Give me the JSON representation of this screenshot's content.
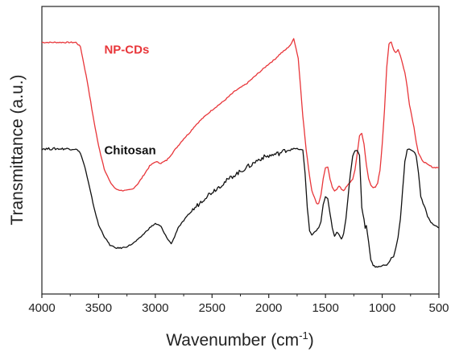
{
  "chart_data": {
    "type": "line",
    "title": "",
    "xlabel": "Wavenumber (cm",
    "xlabel_superscript": "-1",
    "xlabel_suffix": ")",
    "ylabel": "Transmittance (a.u.)",
    "xlim": [
      4000,
      500
    ],
    "x_reversed": true,
    "y_ticks_shown": false,
    "x_ticks": [
      "4000",
      "3500",
      "3000",
      "2500",
      "2000",
      "1500",
      "1000",
      "500"
    ],
    "series": [
      {
        "name": "NP-CDs",
        "color": "#e8363a",
        "x": [
          4000,
          3700,
          3660,
          3600,
          3550,
          3500,
          3450,
          3400,
          3350,
          3300,
          3250,
          3200,
          3150,
          3100,
          3050,
          3000,
          2950,
          2900,
          2850,
          2800,
          2750,
          2700,
          2650,
          2600,
          2500,
          2400,
          2300,
          2200,
          2100,
          2000,
          1950,
          1900,
          1850,
          1800,
          1780,
          1740,
          1700,
          1670,
          1640,
          1620,
          1600,
          1580,
          1560,
          1540,
          1520,
          1500,
          1480,
          1460,
          1440,
          1420,
          1400,
          1380,
          1360,
          1340,
          1320,
          1300,
          1280,
          1260,
          1240,
          1220,
          1200,
          1180,
          1160,
          1140,
          1120,
          1100,
          1080,
          1060,
          1040,
          1020,
          1000,
          980,
          960,
          940,
          920,
          900,
          880,
          860,
          840,
          820,
          800,
          780,
          760,
          740,
          720,
          700,
          680,
          650,
          600,
          550,
          500
        ],
        "y": [
          0.875,
          0.875,
          0.86,
          0.74,
          0.62,
          0.515,
          0.435,
          0.39,
          0.365,
          0.36,
          0.36,
          0.365,
          0.385,
          0.415,
          0.445,
          0.46,
          0.455,
          0.465,
          0.49,
          0.515,
          0.54,
          0.56,
          0.585,
          0.605,
          0.64,
          0.67,
          0.705,
          0.73,
          0.765,
          0.8,
          0.815,
          0.835,
          0.85,
          0.87,
          0.89,
          0.82,
          0.62,
          0.5,
          0.41,
          0.36,
          0.34,
          0.315,
          0.315,
          0.345,
          0.4,
          0.44,
          0.44,
          0.4,
          0.37,
          0.36,
          0.365,
          0.375,
          0.365,
          0.36,
          0.37,
          0.38,
          0.39,
          0.4,
          0.43,
          0.49,
          0.55,
          0.56,
          0.52,
          0.45,
          0.4,
          0.38,
          0.37,
          0.37,
          0.385,
          0.43,
          0.52,
          0.64,
          0.79,
          0.87,
          0.875,
          0.85,
          0.84,
          0.85,
          0.83,
          0.8,
          0.77,
          0.72,
          0.66,
          0.62,
          0.58,
          0.53,
          0.49,
          0.465,
          0.45,
          0.44,
          0.44
        ]
      },
      {
        "name": "Chitosan",
        "color": "#111111",
        "x": [
          4000,
          3900,
          3800,
          3700,
          3660,
          3620,
          3580,
          3540,
          3500,
          3450,
          3400,
          3350,
          3300,
          3250,
          3200,
          3150,
          3100,
          3050,
          3000,
          2950,
          2920,
          2880,
          2860,
          2840,
          2800,
          2750,
          2700,
          2650,
          2600,
          2550,
          2500,
          2450,
          2400,
          2350,
          2300,
          2250,
          2200,
          2150,
          2100,
          2050,
          2000,
          1950,
          1900,
          1850,
          1800,
          1750,
          1700,
          1680,
          1660,
          1640,
          1620,
          1600,
          1580,
          1560,
          1540,
          1520,
          1500,
          1480,
          1460,
          1440,
          1420,
          1400,
          1380,
          1360,
          1340,
          1320,
          1300,
          1280,
          1260,
          1240,
          1220,
          1200,
          1180,
          1160,
          1150,
          1140,
          1120,
          1100,
          1080,
          1060,
          1040,
          1020,
          1000,
          980,
          960,
          940,
          920,
          900,
          880,
          860,
          840,
          820,
          800,
          780,
          760,
          740,
          720,
          700,
          680,
          660,
          640,
          620,
          600,
          580,
          560,
          540,
          520,
          500
        ],
        "y": [
          0.505,
          0.505,
          0.505,
          0.505,
          0.49,
          0.44,
          0.37,
          0.3,
          0.24,
          0.2,
          0.17,
          0.16,
          0.16,
          0.165,
          0.175,
          0.19,
          0.21,
          0.23,
          0.245,
          0.235,
          0.21,
          0.185,
          0.175,
          0.19,
          0.23,
          0.255,
          0.28,
          0.3,
          0.32,
          0.34,
          0.355,
          0.37,
          0.385,
          0.4,
          0.415,
          0.425,
          0.44,
          0.45,
          0.465,
          0.475,
          0.48,
          0.485,
          0.49,
          0.5,
          0.505,
          0.505,
          0.5,
          0.42,
          0.3,
          0.22,
          0.205,
          0.215,
          0.22,
          0.23,
          0.25,
          0.31,
          0.34,
          0.33,
          0.28,
          0.23,
          0.2,
          0.215,
          0.205,
          0.19,
          0.21,
          0.26,
          0.34,
          0.42,
          0.48,
          0.5,
          0.5,
          0.48,
          0.3,
          0.26,
          0.23,
          0.24,
          0.18,
          0.12,
          0.1,
          0.095,
          0.095,
          0.095,
          0.1,
          0.1,
          0.1,
          0.11,
          0.125,
          0.13,
          0.16,
          0.2,
          0.26,
          0.36,
          0.46,
          0.5,
          0.505,
          0.5,
          0.495,
          0.48,
          0.42,
          0.34,
          0.315,
          0.3,
          0.27,
          0.255,
          0.245,
          0.24,
          0.235,
          0.23
        ]
      }
    ],
    "annotations": [
      {
        "text": "NP-CDs",
        "color": "#e8363a",
        "x": 3450,
        "y": 0.85
      },
      {
        "text": "Chitosan",
        "color": "#111111",
        "x": 3450,
        "y": 0.5
      }
    ]
  }
}
